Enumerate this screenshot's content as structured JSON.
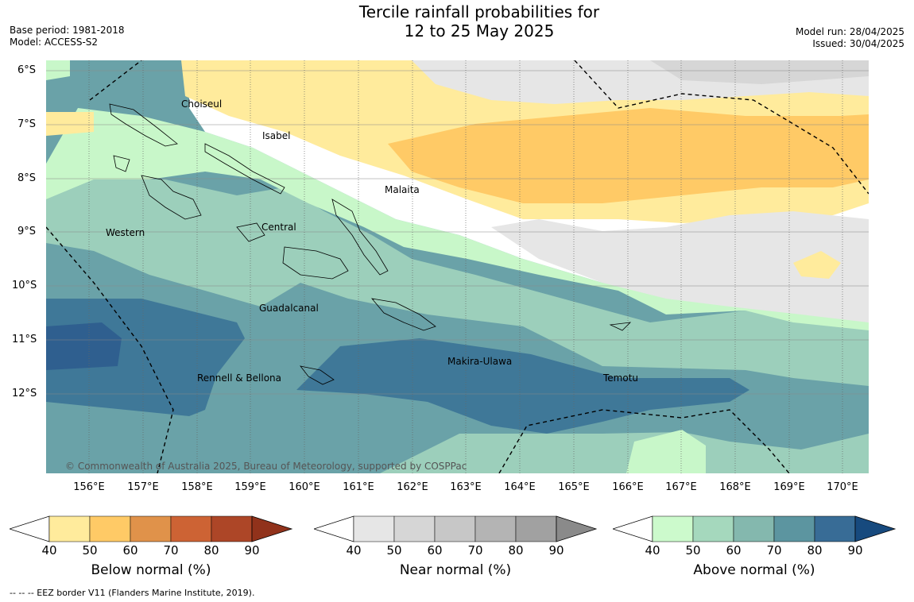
{
  "title_line1": "Tercile rainfall probabilities for",
  "title_line2": "12 to 25 May 2025",
  "meta_left": {
    "base_period": "Base period: 1981-2018",
    "model": "Model: ACCESS-S2"
  },
  "meta_right": {
    "model_run": "Model run: 28/04/2025",
    "issued": "Issued: 30/04/2025"
  },
  "map": {
    "lat_labels": [
      "6°S",
      "7°S",
      "8°S",
      "9°S",
      "10°S",
      "11°S",
      "12°S"
    ],
    "lon_labels": [
      "156°E",
      "157°E",
      "158°E",
      "159°E",
      "160°E",
      "161°E",
      "162°E",
      "163°E",
      "164°E",
      "165°E",
      "166°E",
      "167°E",
      "168°E",
      "169°E",
      "170°E"
    ],
    "places": [
      "Choiseul",
      "Isabel",
      "Malaita",
      "Western",
      "Central",
      "Guadalcanal",
      "Makira-Ulawa",
      "Rennell & Bellona",
      "Temotu"
    ],
    "copyright": "© Commonwealth of Australia 2025, Bureau of Meteorology, supported by COSPPac"
  },
  "colorbars": [
    {
      "title": "Below normal (%)",
      "ticks": [
        "40",
        "50",
        "60",
        "70",
        "80",
        "90"
      ],
      "colors": [
        "#ffeb9c",
        "#ffca66",
        "#e0924a",
        "#cd6334",
        "#ad4627",
        "#91321b"
      ]
    },
    {
      "title": "Near normal (%)",
      "ticks": [
        "40",
        "50",
        "60",
        "70",
        "80",
        "90"
      ],
      "colors": [
        "#e6e6e6",
        "#d6d6d6",
        "#c7c7c7",
        "#b4b4b4",
        "#a1a1a1",
        "#8a8a8a"
      ]
    },
    {
      "title": "Above normal (%)",
      "ticks": [
        "40",
        "50",
        "60",
        "70",
        "80",
        "90"
      ],
      "colors": [
        "#ccfacc",
        "#a5d8bd",
        "#84b8ae",
        "#5c95a0",
        "#386c96",
        "#174a7e"
      ]
    }
  ],
  "footnote": "--  --  -- EEZ border V11 (Flanders Marine Institute, 2019)."
}
